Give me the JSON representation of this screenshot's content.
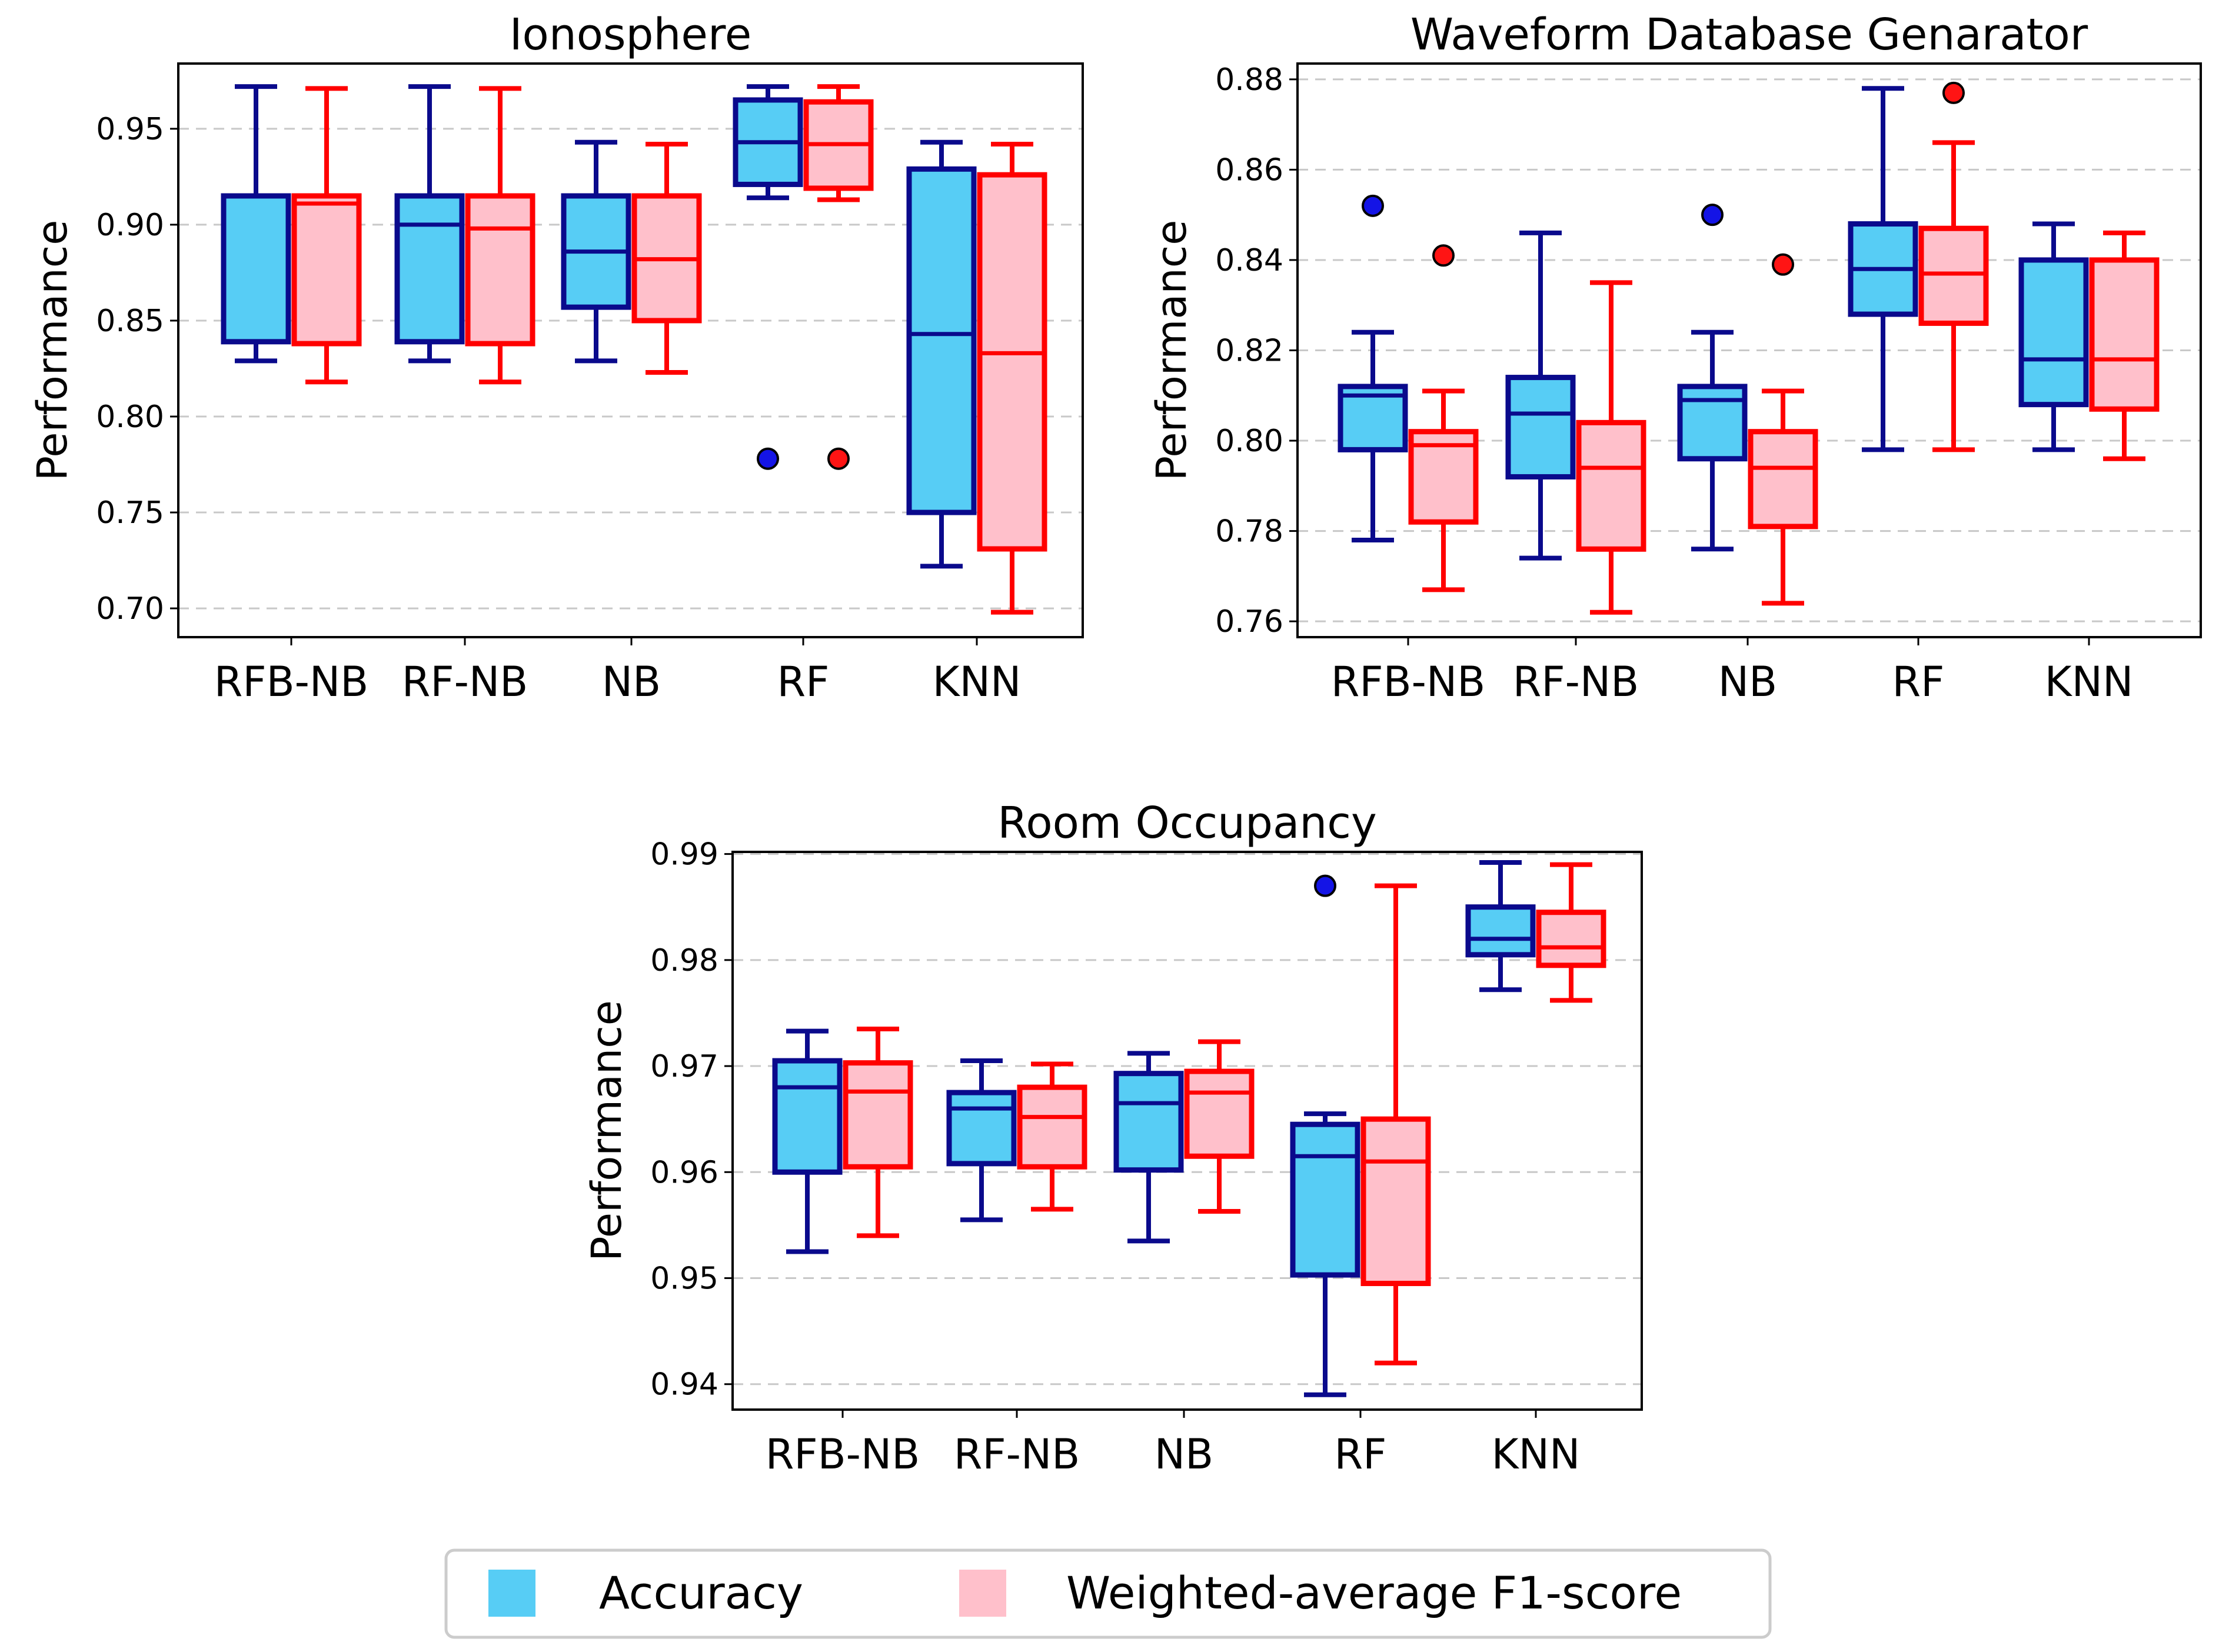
{
  "chart_data": [
    {
      "type": "box",
      "title": "Ionosphere",
      "xlabel": "",
      "ylabel": "Performance",
      "ylim": [
        0.685,
        0.984
      ],
      "yticks": [
        0.7,
        0.75,
        0.8,
        0.85,
        0.9,
        0.95
      ],
      "ytick_labels": [
        "0.70",
        "0.75",
        "0.80",
        "0.85",
        "0.90",
        "0.95"
      ],
      "grid": "y-dashed",
      "categories": [
        "RFB-NB",
        "RF-NB",
        "NB",
        "RF",
        "KNN"
      ],
      "series": [
        {
          "name": "Accuracy",
          "boxes": [
            {
              "wlo": 0.829,
              "q1": 0.839,
              "med": 0.839,
              "q3": 0.915,
              "whi": 0.972,
              "outliers": []
            },
            {
              "wlo": 0.829,
              "q1": 0.839,
              "med": 0.9,
              "q3": 0.915,
              "whi": 0.972,
              "outliers": []
            },
            {
              "wlo": 0.829,
              "q1": 0.857,
              "med": 0.886,
              "q3": 0.915,
              "whi": 0.943,
              "outliers": []
            },
            {
              "wlo": 0.914,
              "q1": 0.921,
              "med": 0.943,
              "q3": 0.965,
              "whi": 0.972,
              "outliers": [
                0.778
              ]
            },
            {
              "wlo": 0.722,
              "q1": 0.75,
              "med": 0.843,
              "q3": 0.929,
              "whi": 0.943,
              "outliers": []
            }
          ]
        },
        {
          "name": "Weighted-average F1-score",
          "boxes": [
            {
              "wlo": 0.818,
              "q1": 0.838,
              "med": 0.911,
              "q3": 0.915,
              "whi": 0.971,
              "outliers": []
            },
            {
              "wlo": 0.818,
              "q1": 0.838,
              "med": 0.898,
              "q3": 0.915,
              "whi": 0.971,
              "outliers": []
            },
            {
              "wlo": 0.823,
              "q1": 0.85,
              "med": 0.882,
              "q3": 0.915,
              "whi": 0.942,
              "outliers": []
            },
            {
              "wlo": 0.913,
              "q1": 0.919,
              "med": 0.942,
              "q3": 0.964,
              "whi": 0.972,
              "outliers": [
                0.778
              ]
            },
            {
              "wlo": 0.698,
              "q1": 0.731,
              "med": 0.833,
              "q3": 0.926,
              "whi": 0.942,
              "outliers": []
            }
          ]
        }
      ]
    },
    {
      "type": "box",
      "title": "Waveform Database Genarator",
      "xlabel": "",
      "ylabel": "Performance",
      "ylim": [
        0.7565,
        0.8835
      ],
      "yticks": [
        0.76,
        0.78,
        0.8,
        0.82,
        0.84,
        0.86,
        0.88
      ],
      "ytick_labels": [
        "0.76",
        "0.78",
        "0.80",
        "0.82",
        "0.84",
        "0.86",
        "0.88"
      ],
      "grid": "y-dashed",
      "categories": [
        "RFB-NB",
        "RF-NB",
        "NB",
        "RF",
        "KNN"
      ],
      "series": [
        {
          "name": "Accuracy",
          "boxes": [
            {
              "wlo": 0.778,
              "q1": 0.798,
              "med": 0.81,
              "q3": 0.812,
              "whi": 0.824,
              "outliers": [
                0.852
              ]
            },
            {
              "wlo": 0.774,
              "q1": 0.792,
              "med": 0.806,
              "q3": 0.814,
              "whi": 0.846,
              "outliers": []
            },
            {
              "wlo": 0.776,
              "q1": 0.796,
              "med": 0.809,
              "q3": 0.812,
              "whi": 0.824,
              "outliers": [
                0.85
              ]
            },
            {
              "wlo": 0.798,
              "q1": 0.828,
              "med": 0.838,
              "q3": 0.848,
              "whi": 0.878,
              "outliers": []
            },
            {
              "wlo": 0.798,
              "q1": 0.808,
              "med": 0.818,
              "q3": 0.84,
              "whi": 0.848,
              "outliers": []
            }
          ]
        },
        {
          "name": "Weighted-average F1-score",
          "boxes": [
            {
              "wlo": 0.767,
              "q1": 0.782,
              "med": 0.799,
              "q3": 0.802,
              "whi": 0.811,
              "outliers": [
                0.841
              ]
            },
            {
              "wlo": 0.762,
              "q1": 0.776,
              "med": 0.794,
              "q3": 0.804,
              "whi": 0.835,
              "outliers": []
            },
            {
              "wlo": 0.764,
              "q1": 0.781,
              "med": 0.794,
              "q3": 0.802,
              "whi": 0.811,
              "outliers": [
                0.839
              ]
            },
            {
              "wlo": 0.798,
              "q1": 0.826,
              "med": 0.837,
              "q3": 0.847,
              "whi": 0.866,
              "outliers": [
                0.877
              ]
            },
            {
              "wlo": 0.796,
              "q1": 0.807,
              "med": 0.818,
              "q3": 0.84,
              "whi": 0.846,
              "outliers": []
            }
          ]
        }
      ]
    },
    {
      "type": "box",
      "title": "Room Occupancy",
      "xlabel": "",
      "ylabel": "Performance",
      "ylim": [
        0.9376,
        0.9902
      ],
      "yticks": [
        0.94,
        0.95,
        0.96,
        0.97,
        0.98,
        0.99
      ],
      "ytick_labels": [
        "0.94",
        "0.95",
        "0.96",
        "0.97",
        "0.98",
        "0.99"
      ],
      "grid": "y-dashed",
      "categories": [
        "RFB-NB",
        "RF-NB",
        "NB",
        "RF",
        "KNN"
      ],
      "series": [
        {
          "name": "Accuracy",
          "boxes": [
            {
              "wlo": 0.9525,
              "q1": 0.96,
              "med": 0.968,
              "q3": 0.9705,
              "whi": 0.9733,
              "outliers": []
            },
            {
              "wlo": 0.9555,
              "q1": 0.9608,
              "med": 0.966,
              "q3": 0.9675,
              "whi": 0.9705,
              "outliers": []
            },
            {
              "wlo": 0.9535,
              "q1": 0.9602,
              "med": 0.9665,
              "q3": 0.9693,
              "whi": 0.9712,
              "outliers": []
            },
            {
              "wlo": 0.939,
              "q1": 0.9503,
              "med": 0.9615,
              "q3": 0.9645,
              "whi": 0.9655,
              "outliers": [
                0.987
              ]
            },
            {
              "wlo": 0.9772,
              "q1": 0.9805,
              "med": 0.982,
              "q3": 0.985,
              "whi": 0.9892,
              "outliers": []
            }
          ]
        },
        {
          "name": "Weighted-average F1-score",
          "boxes": [
            {
              "wlo": 0.954,
              "q1": 0.9605,
              "med": 0.9676,
              "q3": 0.9703,
              "whi": 0.9735,
              "outliers": []
            },
            {
              "wlo": 0.9565,
              "q1": 0.9605,
              "med": 0.9652,
              "q3": 0.968,
              "whi": 0.9702,
              "outliers": []
            },
            {
              "wlo": 0.9563,
              "q1": 0.9615,
              "med": 0.9675,
              "q3": 0.9695,
              "whi": 0.9723,
              "outliers": []
            },
            {
              "wlo": 0.942,
              "q1": 0.9495,
              "med": 0.961,
              "q3": 0.965,
              "whi": 0.987,
              "outliers": []
            },
            {
              "wlo": 0.9762,
              "q1": 0.9795,
              "med": 0.9812,
              "q3": 0.9845,
              "whi": 0.989,
              "outliers": []
            }
          ]
        }
      ]
    }
  ],
  "legend": {
    "placement": "bottom-center",
    "items": [
      {
        "label": "Accuracy",
        "fill": "#57cdf5",
        "edge": "#0a0a8c"
      },
      {
        "label": "Weighted-average F1-score",
        "fill": "#ffc0cb",
        "edge": "#ff0000"
      }
    ]
  },
  "colors": {
    "acc_fill": "#57cdf5",
    "acc_edge": "#0a0a8c",
    "acc_outlier": "#1414e6",
    "f1_fill": "#ffc0cb",
    "f1_edge": "#ff0000",
    "f1_outlier": "#ff1414",
    "grid": "#c8c8c8",
    "legend_border": "#cccccc"
  }
}
